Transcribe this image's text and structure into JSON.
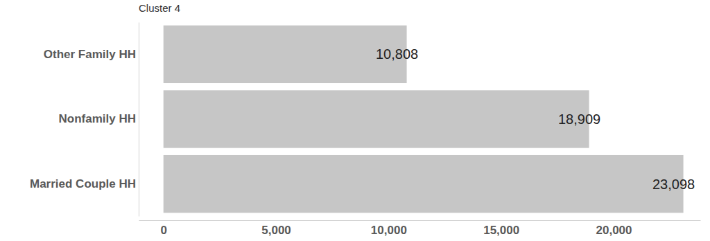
{
  "chart_data": {
    "type": "bar",
    "orientation": "horizontal",
    "title": "Cluster 4",
    "categories": [
      "Other Family HH",
      "Nonfamily HH",
      "Married Couple HH"
    ],
    "values": [
      10808,
      18909,
      23098
    ],
    "value_labels": [
      "10,808",
      "18,909",
      "23,098"
    ],
    "data_labels": true,
    "color": "#c6c6c6",
    "xlim": [
      -1100,
      23850
    ],
    "xticks": [
      0,
      {
        "value": 5000,
        "label": "5,000"
      },
      {
        "value": 10000,
        "label": "10,000"
      },
      {
        "value": 15000,
        "label": "15,000"
      },
      {
        "value": 20000,
        "label": "20,000"
      }
    ],
    "grid": false
  }
}
